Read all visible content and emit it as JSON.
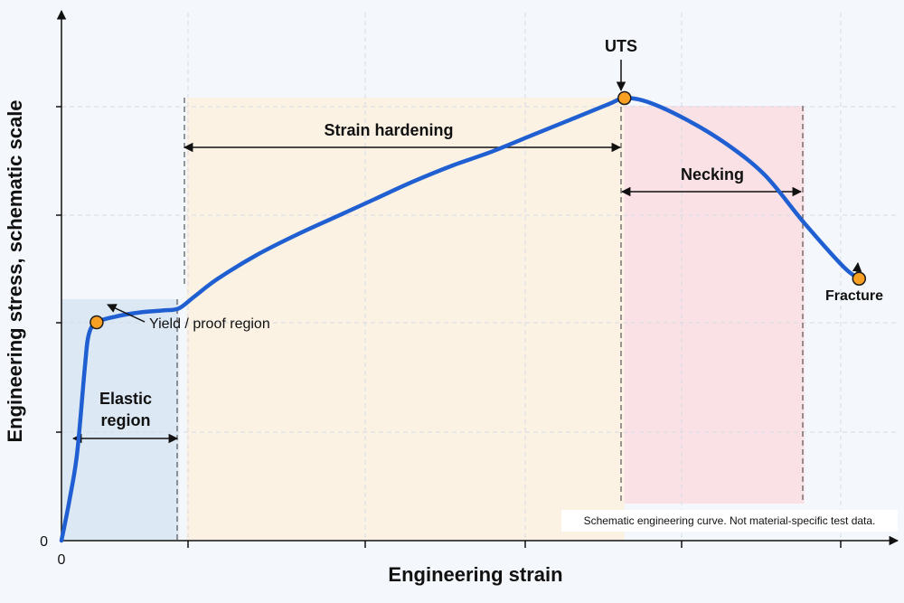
{
  "chart_data": {
    "type": "line",
    "title": "",
    "xlabel": "Engineering strain",
    "ylabel": "Engineering stress, schematic scale",
    "x_tick_labels": [
      "0"
    ],
    "y_tick_labels": [
      "0"
    ],
    "grid": true,
    "series": [
      {
        "x": [
          0,
          0.01,
          0.02,
          0.03,
          0.035,
          0.045,
          0.07,
          0.1,
          0.13,
          0.15,
          0.17,
          0.2,
          0.25,
          0.3,
          0.35,
          0.4,
          0.45,
          0.5,
          0.55,
          0.6,
          0.65,
          0.7,
          0.72,
          0.75,
          0.8,
          0.85,
          0.9,
          0.95,
          1.0,
          1.02
        ],
        "y": [
          0,
          0.1,
          0.22,
          0.44,
          0.52,
          0.55,
          0.565,
          0.575,
          0.58,
          0.585,
          0.615,
          0.66,
          0.72,
          0.77,
          0.815,
          0.86,
          0.905,
          0.945,
          0.98,
          1.02,
          1.06,
          1.1,
          1.115,
          1.105,
          1.06,
          1.0,
          0.92,
          0.8,
          0.69,
          0.66
        ]
      }
    ],
    "points": [
      {
        "label": "Yield / proof region",
        "x": 0.045,
        "y": 0.55
      },
      {
        "label": "UTS",
        "x": 0.72,
        "y": 1.115
      },
      {
        "label": "Fracture",
        "x": 1.02,
        "y": 0.66
      }
    ],
    "regions": [
      {
        "label": "Elastic region",
        "label_lines": [
          "Elastic",
          "region"
        ],
        "x_start": 0,
        "x_end": 0.15,
        "color": "#dce8f4"
      },
      {
        "label": "Strain hardening",
        "x_start": 0.16,
        "x_end": 0.72,
        "color": "#fbf2e4"
      },
      {
        "label": "Necking",
        "x_start": 0.72,
        "x_end": 0.95,
        "color": "#f9e1e5"
      }
    ],
    "note": "Schematic engineering curve. Not material-specific test data."
  },
  "colors": {
    "curve": "#1f5fd1",
    "marker_fill": "#f7a024",
    "marker_stroke": "#1a1a1a"
  }
}
